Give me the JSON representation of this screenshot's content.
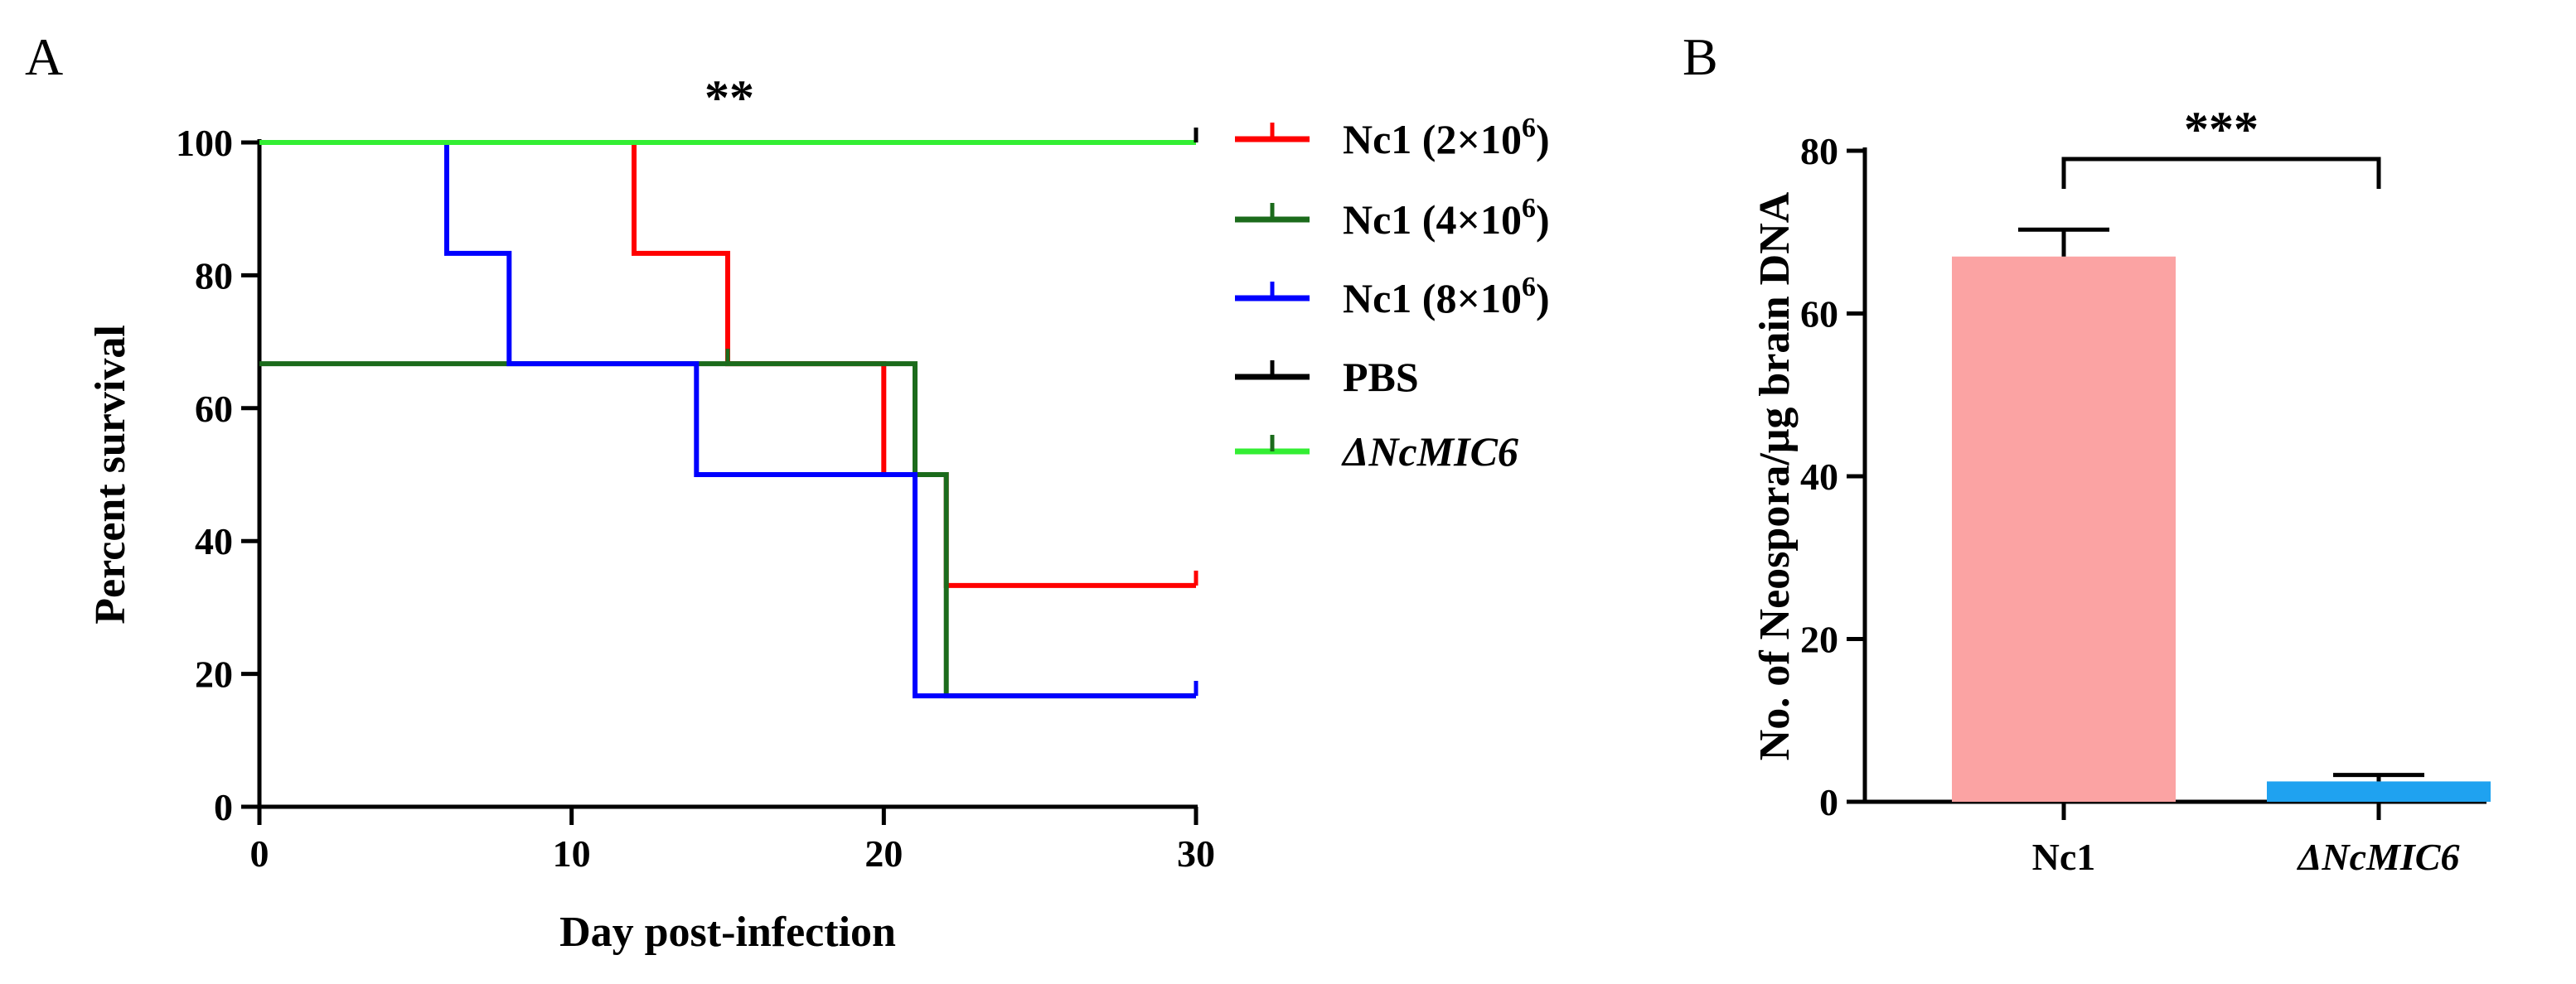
{
  "chart_data": [
    {
      "panel": "A",
      "type": "line",
      "subtype": "kaplan-meier survival",
      "xlabel": "Day post-infection",
      "ylabel": "Percent survival",
      "xlim": [
        0,
        30
      ],
      "ylim": [
        0,
        100
      ],
      "xticks": [
        0,
        10,
        20,
        30
      ],
      "yticks": [
        0,
        20,
        40,
        60,
        80,
        100
      ],
      "significance": "**",
      "legend_position": "right",
      "series": [
        {
          "name": "Nc1 (2×10",
          "sup": "6",
          "suffix": ")",
          "color": "#ff0000",
          "x": [
            0,
            12,
            12,
            15,
            15,
            20,
            20,
            22,
            22,
            30
          ],
          "y": [
            100,
            100,
            83.3,
            83.3,
            66.7,
            66.7,
            50,
            50,
            33.3,
            33.3
          ]
        },
        {
          "name": "Nc1 (4×10",
          "sup": "6",
          "suffix": ")",
          "color": "#1b6b1b",
          "x": [
            0,
            15,
            21,
            21,
            22,
            22,
            30
          ],
          "y": [
            66.7,
            66.7,
            66.7,
            50,
            50,
            16.7,
            16.7
          ]
        },
        {
          "name": "Nc1 (8×10",
          "sup": "6",
          "suffix": ")",
          "color": "#0000ff",
          "x": [
            0,
            6,
            6,
            8,
            8,
            14,
            14,
            21,
            21,
            30
          ],
          "y": [
            100,
            100,
            83.3,
            83.3,
            66.7,
            66.7,
            50,
            50,
            16.7,
            16.7
          ]
        },
        {
          "name": "PBS",
          "sup": "",
          "suffix": "",
          "color": "#000000",
          "x": [
            0,
            30
          ],
          "y": [
            100,
            100
          ]
        },
        {
          "name": "ΔNcMIC6",
          "sup": "",
          "suffix": "",
          "color": "#33ee33",
          "italic": true,
          "x": [
            0,
            30
          ],
          "y": [
            100,
            100
          ]
        }
      ]
    },
    {
      "panel": "B",
      "type": "bar",
      "ylabel": "No. of Neospora/μg brain DNA",
      "ylim": [
        0,
        80
      ],
      "yticks": [
        0,
        20,
        40,
        60,
        80
      ],
      "categories": [
        "Nc1",
        "ΔNcMIC6"
      ],
      "values": [
        67,
        2.5
      ],
      "errors": [
        3.3,
        0.8
      ],
      "colors": [
        "#fba3a3",
        "#1fa2f0"
      ],
      "significance": "***"
    }
  ]
}
